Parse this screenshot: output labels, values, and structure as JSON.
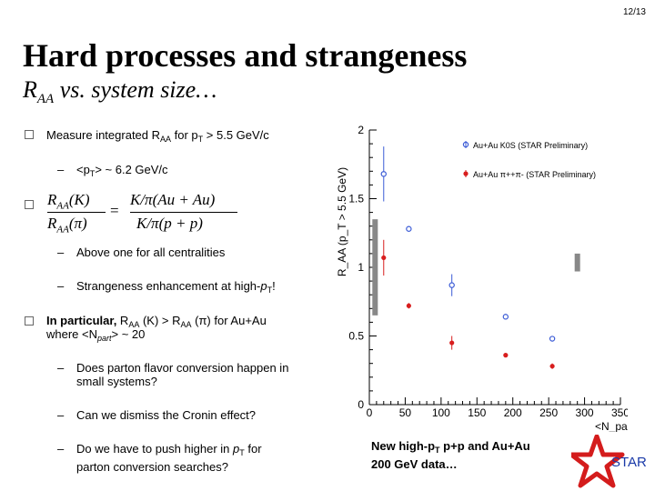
{
  "page_number": "12/13",
  "title": "Hard processes and strangeness",
  "subtitle": {
    "prefix": "R",
    "sub": "AA",
    "suffix": " vs. system size…"
  },
  "bullets": {
    "b1": {
      "text_a": "Measure integrated R",
      "sub_a": "AA",
      "text_b": " for p",
      "sub_b": "T",
      "text_c": " > 5.5 GeV/c"
    },
    "b1_sub": "<p",
    "b1_sub_sub": "T",
    "b1_sub_tail": "> ~ 6.2 GeV/c",
    "eq": {
      "lhs_num": "R",
      "lhs_num_sub": "AA",
      "lhs_num_arg": "(K)",
      "lhs_den": "R",
      "lhs_den_sub": "AA",
      "lhs_den_arg": "(π)",
      "eqsign": "=",
      "rhs_num": "K/π(Au + Au)",
      "rhs_den": "K/π(p + p)"
    },
    "b2_sub1": "Above one for all centralities",
    "b2_sub2_a": "Strangeness enhancement at high-",
    "b2_sub2_p": "p",
    "b2_sub2_T": "T",
    "b2_sub2_b": "!",
    "b3_bold": "In particular,",
    "b3_a": " R",
    "b3_sub1": "AA",
    "b3_b": " (K) >  R",
    "b3_sub2": "AA",
    "b3_c": " (π) for Au+Au",
    "b3_line2_a": "where <N",
    "b3_line2_sub": "part",
    "b3_line2_b": "> ~ 20",
    "q1_line1": "Does parton flavor conversion happen in",
    "q1_line2": "small systems?",
    "q2": "Can we dismiss the Cronin effect?",
    "q3_line1_a": "Do we have to push higher in ",
    "q3_line1_p": "p",
    "q3_line1_T": "T",
    "q3_line1_b": " for",
    "q3_line2": "parton conversion searches?"
  },
  "note": {
    "line1_a": "New high-p",
    "line1_sub": "T",
    "line1_b": " p+p and Au+Au",
    "line2": "200 GeV data…"
  },
  "logo_text": "STAR",
  "colors": {
    "kaon": "#3b5bd6",
    "pion": "#d81e1e",
    "syserr": "#888888"
  },
  "chart_data": {
    "type": "scatter",
    "ylabel": "R_AA (p_T > 5.5 GeV)",
    "xlabel": "<N_part>",
    "xlim": [
      0,
      350
    ],
    "ylim": [
      0,
      2
    ],
    "x_ticks": [
      "0",
      "50",
      "100",
      "150",
      "200",
      "250",
      "300",
      "350"
    ],
    "y_ticks": [
      "0",
      "0.5",
      "1",
      "1.5",
      "2"
    ],
    "series": [
      {
        "name": "Au+Au K0S (STAR Preliminary)",
        "marker": "open-circle",
        "x": [
          20,
          55,
          115,
          190,
          255
        ],
        "y": [
          1.68,
          1.28,
          0.87,
          0.64,
          0.48
        ],
        "err": [
          0.2,
          0.02,
          0.08,
          0.02,
          0.02
        ]
      },
      {
        "name": "Au+Au π++π- (STAR Preliminary)",
        "marker": "filled-circle",
        "x": [
          20,
          55,
          115,
          190,
          255
        ],
        "y": [
          1.07,
          0.72,
          0.45,
          0.36,
          0.28
        ],
        "err": [
          0.13,
          0.02,
          0.05,
          0.01,
          0.02
        ]
      }
    ],
    "sys_bands": [
      {
        "x": 8,
        "ymin": 0.65,
        "ymax": 1.35
      },
      {
        "x": 290,
        "ymin": 0.97,
        "ymax": 1.1
      }
    ],
    "legend": "top-right",
    "grid": false
  }
}
